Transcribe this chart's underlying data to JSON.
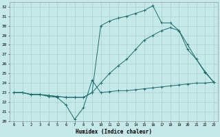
{
  "xlabel": "Humidex (Indice chaleur)",
  "xlim": [
    -0.5,
    23.5
  ],
  "ylim": [
    20,
    32.5
  ],
  "yticks": [
    20,
    21,
    22,
    23,
    24,
    25,
    26,
    27,
    28,
    29,
    30,
    31,
    32
  ],
  "xticks": [
    0,
    1,
    2,
    3,
    4,
    5,
    6,
    7,
    8,
    9,
    10,
    11,
    12,
    13,
    14,
    15,
    16,
    17,
    18,
    19,
    20,
    21,
    22,
    23
  ],
  "bg_color": "#c5e8e8",
  "grid_color": "#a0c8c8",
  "line_color": "#1a6b6b",
  "line1_x": [
    0,
    1,
    2,
    3,
    4,
    5,
    6,
    7,
    8,
    9,
    10,
    11,
    12,
    13,
    14,
    15,
    16,
    17,
    18,
    19,
    20,
    21,
    22,
    23
  ],
  "line1_y": [
    23.0,
    23.0,
    22.8,
    22.8,
    22.6,
    22.5,
    21.7,
    20.2,
    21.4,
    24.3,
    23.0,
    23.1,
    23.2,
    23.2,
    23.3,
    23.4,
    23.5,
    23.6,
    23.7,
    23.8,
    23.9,
    24.0,
    24.0,
    24.1
  ],
  "line2_x": [
    0,
    1,
    2,
    3,
    4,
    5,
    6,
    7,
    8,
    9,
    10,
    11,
    12,
    13,
    14,
    15,
    16,
    17,
    18,
    19,
    20,
    21,
    22,
    23
  ],
  "line2_y": [
    23.0,
    23.0,
    22.8,
    22.8,
    22.7,
    22.6,
    22.5,
    22.5,
    22.5,
    23.0,
    24.0,
    25.0,
    25.8,
    26.5,
    27.5,
    28.5,
    29.0,
    29.5,
    29.8,
    29.5,
    28.0,
    26.5,
    25.2,
    24.1
  ],
  "line3_x": [
    0,
    1,
    2,
    3,
    4,
    5,
    6,
    7,
    8,
    9,
    10,
    11,
    12,
    13,
    14,
    15,
    16,
    17,
    18,
    19,
    20,
    21,
    22,
    23
  ],
  "line3_y": [
    23.0,
    23.0,
    22.8,
    22.8,
    22.7,
    22.6,
    22.5,
    22.5,
    22.5,
    23.0,
    30.0,
    30.5,
    30.8,
    31.0,
    31.3,
    31.6,
    32.1,
    30.3,
    30.3,
    29.5,
    27.5,
    26.5,
    25.1,
    24.1
  ],
  "marker": "+",
  "marker_size": 3,
  "linewidth": 0.7
}
